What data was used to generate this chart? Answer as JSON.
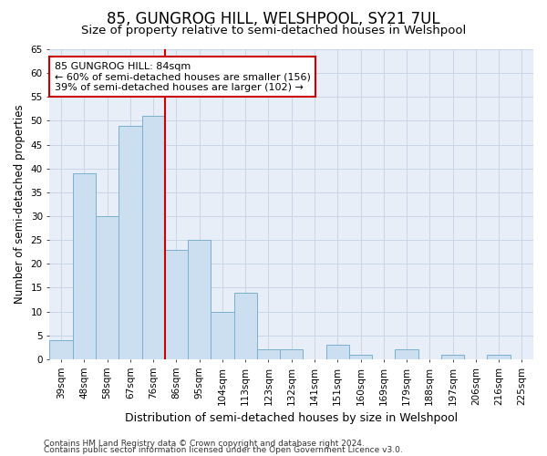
{
  "title": "85, GUNGROG HILL, WELSHPOOL, SY21 7UL",
  "subtitle": "Size of property relative to semi-detached houses in Welshpool",
  "xlabel": "Distribution of semi-detached houses by size in Welshpool",
  "ylabel": "Number of semi-detached properties",
  "categories": [
    "39sqm",
    "48sqm",
    "58sqm",
    "67sqm",
    "76sqm",
    "86sqm",
    "95sqm",
    "104sqm",
    "113sqm",
    "123sqm",
    "132sqm",
    "141sqm",
    "151sqm",
    "160sqm",
    "169sqm",
    "179sqm",
    "188sqm",
    "197sqm",
    "206sqm",
    "216sqm",
    "225sqm"
  ],
  "values": [
    4,
    39,
    30,
    49,
    51,
    23,
    25,
    10,
    14,
    2,
    2,
    0,
    3,
    1,
    0,
    2,
    0,
    1,
    0,
    1,
    0
  ],
  "bar_color": "#ccdff0",
  "bar_edge_color": "#7ab0d0",
  "red_line_color": "#cc0000",
  "red_line_x": 5,
  "annotation_text": "85 GUNGROG HILL: 84sqm\n← 60% of semi-detached houses are smaller (156)\n39% of semi-detached houses are larger (102) →",
  "annotation_box_color": "#ffffff",
  "annotation_box_edge": "#cc0000",
  "ylim": [
    0,
    65
  ],
  "yticks": [
    0,
    5,
    10,
    15,
    20,
    25,
    30,
    35,
    40,
    45,
    50,
    55,
    60,
    65
  ],
  "grid_color": "#c8d4e8",
  "bg_color": "#e8eef8",
  "footer1": "Contains HM Land Registry data © Crown copyright and database right 2024.",
  "footer2": "Contains public sector information licensed under the Open Government Licence v3.0.",
  "title_fontsize": 12,
  "subtitle_fontsize": 9.5,
  "xlabel_fontsize": 9,
  "ylabel_fontsize": 8.5,
  "tick_fontsize": 7.5,
  "annotation_fontsize": 8,
  "footer_fontsize": 6.5
}
